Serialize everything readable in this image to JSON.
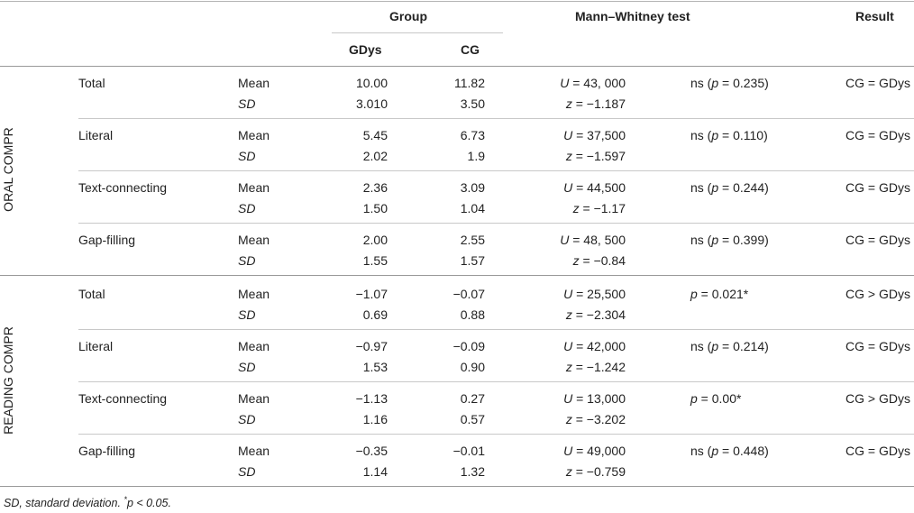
{
  "header": {
    "group": "Group",
    "test": "Mann–Whitney test",
    "result": "Result",
    "gdys": "GDys",
    "cg": "CG"
  },
  "sections": [
    {
      "label": "ORAL COMPR",
      "rows": [
        {
          "name": "Total",
          "mean_label": "Mean",
          "sd_label": "SD",
          "mean_gdys": "10.00",
          "mean_cg": "11.82",
          "sd_gdys": "3.010",
          "sd_cg": "3.50",
          "u_val": "43, 000",
          "z_val": "−1.187",
          "p_pre": "ns (",
          "p_val": " = 0.235)",
          "result": "CG = GDys"
        },
        {
          "name": "Literal",
          "mean_label": "Mean",
          "sd_label": "SD",
          "mean_gdys": "5.45",
          "mean_cg": "6.73",
          "sd_gdys": "2.02",
          "sd_cg": "1.9",
          "u_val": "37,500",
          "z_val": "−1.597",
          "p_pre": "ns (",
          "p_val": " = 0.110)",
          "result": "CG = GDys"
        },
        {
          "name": "Text-connecting",
          "mean_label": "Mean",
          "sd_label": "SD",
          "mean_gdys": "2.36",
          "mean_cg": "3.09",
          "sd_gdys": "1.50",
          "sd_cg": "1.04",
          "u_val": "44,500",
          "z_val": "−1.17",
          "p_pre": "ns (",
          "p_val": " = 0.244)",
          "result": "CG = GDys"
        },
        {
          "name": "Gap-filling",
          "mean_label": "Mean",
          "sd_label": "SD",
          "mean_gdys": "2.00",
          "mean_cg": "2.55",
          "sd_gdys": "1.55",
          "sd_cg": "1.57",
          "u_val": "48, 500",
          "z_val": "−0.84",
          "p_pre": "ns (",
          "p_val": " = 0.399)",
          "result": "CG = GDys"
        }
      ]
    },
    {
      "label": "READING COMPR",
      "rows": [
        {
          "name": "Total",
          "mean_label": "Mean",
          "sd_label": "SD",
          "mean_gdys": "−1.07",
          "mean_cg": "−0.07",
          "sd_gdys": "0.69",
          "sd_cg": "0.88",
          "u_val": "25,500",
          "z_val": "−2.304",
          "p_pre": "",
          "p_val": " = 0.021*",
          "result": "CG > GDys"
        },
        {
          "name": "Literal",
          "mean_label": "Mean",
          "sd_label": "SD",
          "mean_gdys": "−0.97",
          "mean_cg": "−0.09",
          "sd_gdys": "1.53",
          "sd_cg": "0.90",
          "u_val": "42,000",
          "z_val": "−1.242",
          "p_pre": "ns (",
          "p_val": " = 0.214)",
          "result": "CG = GDys"
        },
        {
          "name": "Text-connecting",
          "mean_label": "Mean",
          "sd_label": "SD",
          "mean_gdys": "−1.13",
          "mean_cg": "0.27",
          "sd_gdys": "1.16",
          "sd_cg": "0.57",
          "u_val": "13,000",
          "z_val": "−3.202",
          "p_pre": "",
          "p_val": " = 0.00*",
          "result": "CG > GDys"
        },
        {
          "name": "Gap-filling",
          "mean_label": "Mean",
          "sd_label": "SD",
          "mean_gdys": "−0.35",
          "mean_cg": "−0.01",
          "sd_gdys": "1.14",
          "sd_cg": "1.32",
          "u_val": "49,000",
          "z_val": "−0.759",
          "p_pre": "ns (",
          "p_val": " = 0.448)",
          "result": "CG = GDys"
        }
      ]
    }
  ],
  "footnote": {
    "text": "SD, standard deviation. ",
    "star": "*",
    "p_part": "p < 0.05."
  }
}
